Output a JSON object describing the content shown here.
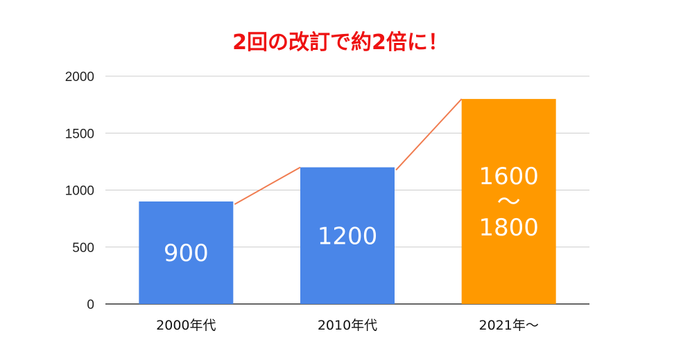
{
  "chart_data": {
    "type": "bar",
    "title": "2回の改訂で約2倍に！",
    "xlabel": "",
    "ylabel": "",
    "categories": [
      "2000年代",
      "2010年代",
      "2021年～"
    ],
    "values": [
      900,
      1200,
      1800
    ],
    "range_low": [
      null,
      null,
      1600
    ],
    "data_labels": [
      [
        "900"
      ],
      [
        "1200"
      ],
      [
        "1600",
        "～",
        "1800"
      ]
    ],
    "bar_colors": [
      "#4a86e8",
      "#4a86e8",
      "#ff9900"
    ],
    "trend_line": {
      "values": [
        900,
        1200,
        1800
      ],
      "color": "#f07c50"
    },
    "ylim": [
      0,
      2000
    ],
    "yticks": [
      "0",
      "500",
      "1000",
      "1500",
      "2000"
    ],
    "ytick_values": [
      0,
      500,
      1000,
      1500,
      2000
    ],
    "grid": true,
    "legend": "none",
    "colors": {
      "title": "#ee1111",
      "grid": "#cccccc",
      "axis": "#333333"
    }
  }
}
